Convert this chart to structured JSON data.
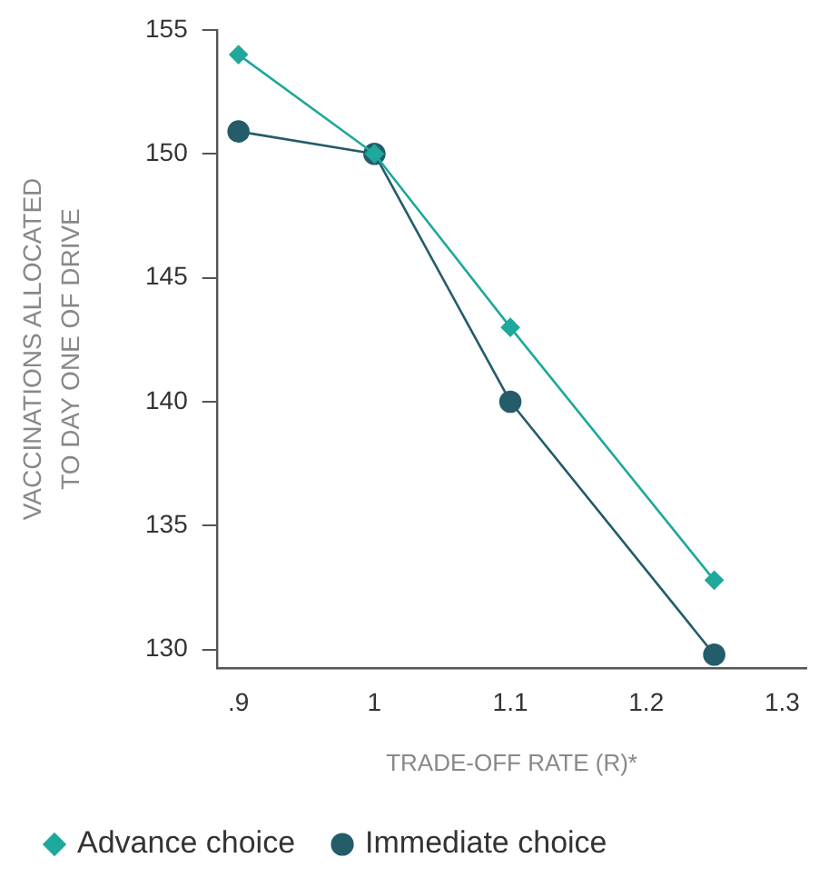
{
  "chart_data": {
    "type": "line",
    "xlabel": "TRADE-OFF RATE (R)*",
    "ylabel": "VACCINATIONS ALLOCATED\nTO DAY ONE OF DRIVE",
    "x": [
      0.9,
      1,
      1.1,
      1.25
    ],
    "series": [
      {
        "name": "Advance choice",
        "color": "#1fa89c",
        "marker": "diamond",
        "values": [
          154,
          150,
          143,
          132.8
        ]
      },
      {
        "name": "Immediate choice",
        "color": "#245c6a",
        "marker": "circle",
        "values": [
          150.9,
          150,
          140,
          129.8
        ]
      }
    ],
    "xlim": [
      0.884,
      1.318
    ],
    "xticks": [
      {
        "value": 0.9,
        "label": ".9"
      },
      1,
      1.1,
      1.2,
      1.3
    ],
    "ylim": [
      129.25,
      155
    ],
    "yticks": [
      130,
      135,
      140,
      145,
      150,
      155
    ],
    "grid": false,
    "legend": "bottom left",
    "line_style": "solid"
  }
}
